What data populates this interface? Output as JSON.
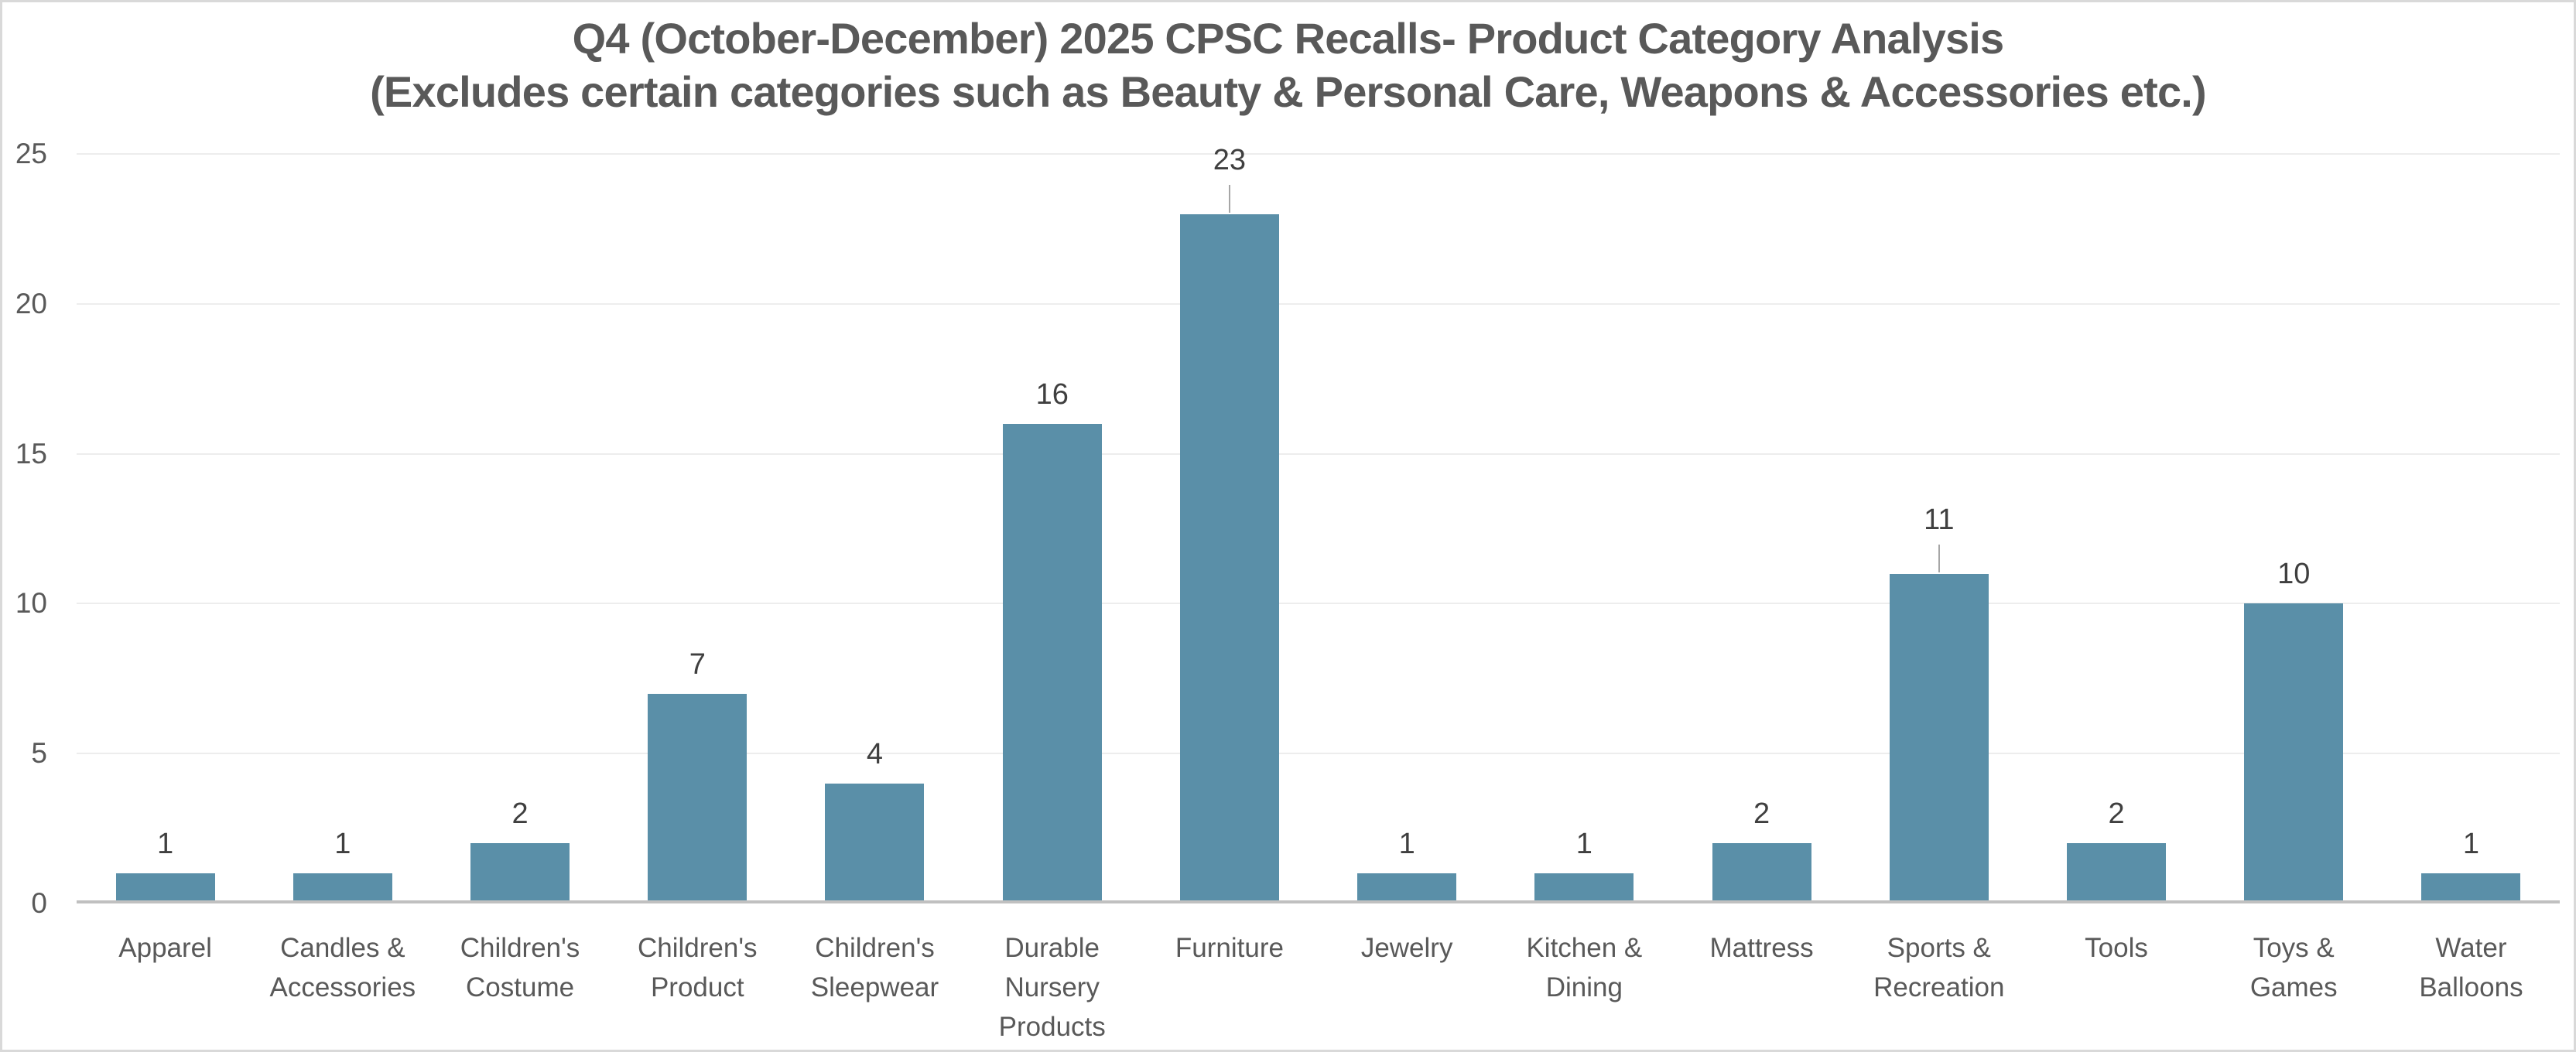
{
  "chart_data": {
    "type": "bar",
    "title": "Q4 (October-December) 2025 CPSC Recalls- Product Category Analysis",
    "subtitle": "(Excludes certain categories such as Beauty & Personal Care, Weapons & Accessories etc.)",
    "categories": [
      "Apparel",
      "Candles & Accessories",
      "Children's Costume",
      "Children's Product",
      "Children's Sleepwear",
      "Durable Nursery Products",
      "Furniture",
      "Jewelry",
      "Kitchen & Dining",
      "Mattress",
      "Sports & Recreation",
      "Tools",
      "Toys & Games",
      "Water Balloons"
    ],
    "category_label_lines": [
      [
        "Apparel"
      ],
      [
        "Candles &",
        "Accessories"
      ],
      [
        "Children's",
        "Costume"
      ],
      [
        "Children's",
        "Product"
      ],
      [
        "Children's",
        "Sleepwear"
      ],
      [
        "Durable",
        "Nursery",
        "Products"
      ],
      [
        "Furniture"
      ],
      [
        "Jewelry"
      ],
      [
        "Kitchen &",
        "Dining"
      ],
      [
        "Mattress"
      ],
      [
        "Sports &",
        "Recreation"
      ],
      [
        "Tools"
      ],
      [
        "Toys &",
        "Games"
      ],
      [
        "Water",
        "Balloons"
      ]
    ],
    "values": [
      1,
      1,
      2,
      7,
      4,
      16,
      23,
      1,
      1,
      2,
      11,
      2,
      10,
      1
    ],
    "data_labels_shown": true,
    "labels_with_leader_lines": [
      "Furniture",
      "Sports & Recreation"
    ],
    "xlabel": "",
    "ylabel": "",
    "ylim": [
      0,
      25
    ],
    "yticks": [
      0,
      5,
      10,
      15,
      20,
      25
    ],
    "grid": "horizontal",
    "legend": "none",
    "colors": {
      "bar": "#5a8fa8",
      "title_text": "#595959",
      "axis_text": "#595959",
      "data_label_text": "#3f3f3f",
      "gridline": "#ededed",
      "axis_line": "#c0c0c0",
      "leader_line": "#a6a6a6",
      "chart_border": "#d9d9d9",
      "background": "#ffffff"
    }
  }
}
